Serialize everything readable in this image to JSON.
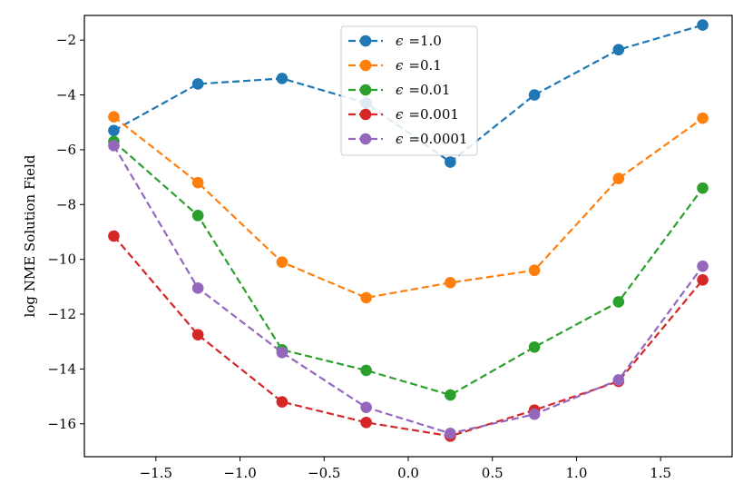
{
  "chart_data": {
    "type": "line",
    "xlabel": "",
    "ylabel": "log NME Solution Field",
    "xlim": [
      -1.925,
      1.925
    ],
    "ylim": [
      -17.2,
      -1.1
    ],
    "x_ticks": [
      -1.5,
      -1.0,
      -0.5,
      0.0,
      0.5,
      1.0,
      1.5
    ],
    "x_tick_labels": [
      "−1.5",
      "−1.0",
      "−0.5",
      "0.0",
      "0.5",
      "1.0",
      "1.5"
    ],
    "y_ticks": [
      -16,
      -14,
      -12,
      -10,
      -8,
      -6,
      -4,
      -2
    ],
    "y_tick_labels": [
      "−16",
      "−14",
      "−12",
      "−10",
      "−8",
      "−6",
      "−4",
      "−2"
    ],
    "grid": false,
    "legend_position": "top-center",
    "x": [
      -1.75,
      -1.25,
      -0.75,
      -0.25,
      0.25,
      0.75,
      1.25,
      1.75
    ],
    "series": [
      {
        "name": "ϵ =1.0",
        "legend_symbol": "ϵ",
        "legend_value": "=1.0",
        "color": "#1f77b4",
        "values": [
          -5.3,
          -3.6,
          -3.4,
          -4.3,
          -6.45,
          -4.0,
          -2.35,
          -1.45
        ]
      },
      {
        "name": "ϵ =0.1",
        "legend_symbol": "ϵ",
        "legend_value": "=0.1",
        "color": "#ff7f0e",
        "values": [
          -4.8,
          -7.2,
          -10.1,
          -11.4,
          -10.85,
          -10.4,
          -7.05,
          -4.85
        ]
      },
      {
        "name": "ϵ =0.01",
        "legend_symbol": "ϵ",
        "legend_value": "=0.01",
        "color": "#2ca02c",
        "values": [
          -5.7,
          -8.4,
          -13.3,
          -14.05,
          -14.95,
          -13.2,
          -11.55,
          -7.4
        ]
      },
      {
        "name": "ϵ =0.001",
        "legend_symbol": "ϵ",
        "legend_value": "=0.001",
        "color": "#d62728",
        "values": [
          -9.15,
          -12.75,
          -15.2,
          -15.95,
          -16.45,
          -15.5,
          -14.45,
          -10.75
        ]
      },
      {
        "name": "ϵ =0.0001",
        "legend_symbol": "ϵ",
        "legend_value": "=0.0001",
        "color": "#9467bd",
        "values": [
          -5.85,
          -11.05,
          -13.4,
          -15.4,
          -16.35,
          -15.65,
          -14.4,
          -10.25
        ]
      }
    ]
  }
}
